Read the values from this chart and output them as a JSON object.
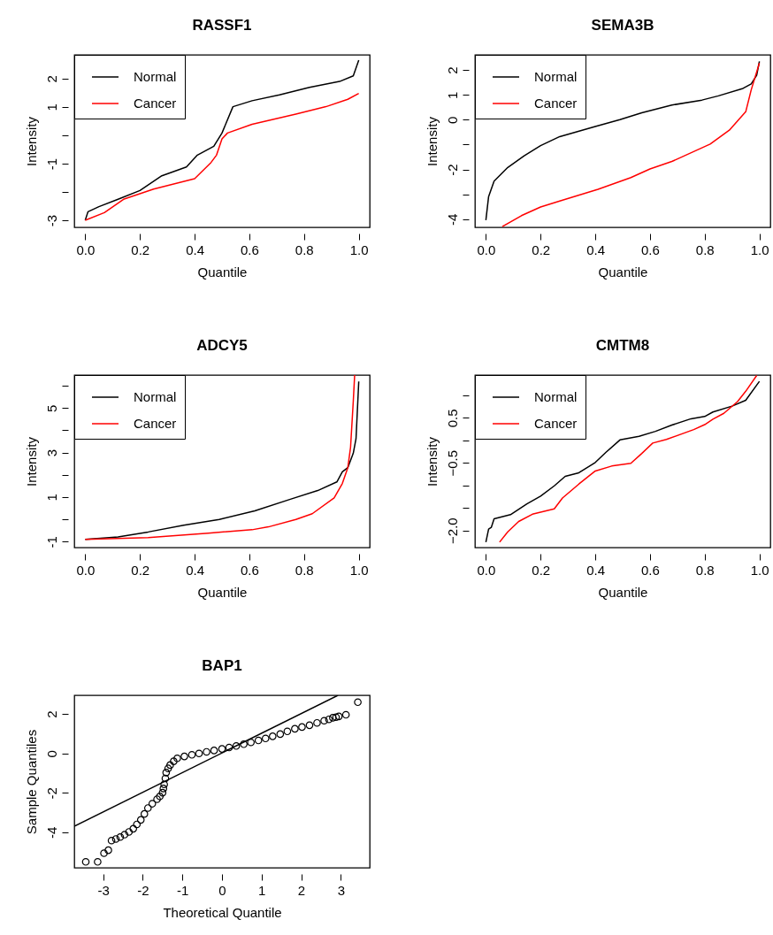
{
  "chart_data": [
    {
      "type": "line",
      "title": "RASSF1",
      "xlabel": "Quantile",
      "ylabel": "Intensity",
      "xlim": [
        -0.04,
        1.04
      ],
      "ylim": [
        -3.25,
        2.84
      ],
      "xticks": [
        {
          "value": 0,
          "label": "0.0"
        },
        {
          "value": 0.2,
          "label": "0.2"
        },
        {
          "value": 0.4,
          "label": "0.4"
        },
        {
          "value": 0.6,
          "label": "0.6"
        },
        {
          "value": 0.8,
          "label": "0.8"
        },
        {
          "value": 1,
          "label": "1.0"
        }
      ],
      "yticks": [
        -3,
        {
          "value": -2,
          "label": null
        },
        -1,
        {
          "value": 0,
          "label": null
        },
        1,
        2
      ],
      "legend": "top left",
      "series": [
        {
          "name": "Normal",
          "color": "#000000",
          "x": [
            0,
            0.01,
            0.05,
            0.12,
            0.2,
            0.28,
            0.37,
            0.41,
            0.47,
            0.5,
            0.54,
            0.61,
            0.71,
            0.82,
            0.93,
            0.98,
            1
          ],
          "values": [
            -3.0,
            -2.7,
            -2.52,
            -2.26,
            -1.95,
            -1.43,
            -1.12,
            -0.7,
            -0.39,
            0.08,
            1.01,
            1.22,
            1.43,
            1.69,
            1.9,
            2.1,
            2.65
          ]
        },
        {
          "name": "Cancer",
          "color": "#ff0000",
          "x": [
            0,
            0.07,
            0.14,
            0.25,
            0.4,
            0.46,
            0.48,
            0.5,
            0.52,
            0.61,
            0.77,
            0.88,
            0.96,
            1
          ],
          "values": [
            -3.0,
            -2.73,
            -2.26,
            -1.9,
            -1.53,
            -0.96,
            -0.7,
            -0.13,
            0.08,
            0.39,
            0.75,
            1.01,
            1.27,
            1.48
          ]
        }
      ]
    },
    {
      "type": "line",
      "title": "SEMA3B",
      "xlabel": "Quantile",
      "ylabel": "Intensity",
      "xlim": [
        -0.04,
        1.04
      ],
      "ylim": [
        -4.33,
        2.61
      ],
      "xticks": [
        {
          "value": 0,
          "label": "0.0"
        },
        {
          "value": 0.2,
          "label": "0.2"
        },
        {
          "value": 0.4,
          "label": "0.4"
        },
        {
          "value": 0.6,
          "label": "0.6"
        },
        {
          "value": 0.8,
          "label": "0.8"
        },
        {
          "value": 1,
          "label": "1.0"
        }
      ],
      "yticks": [
        -4,
        {
          "value": -3,
          "label": null
        },
        -2,
        {
          "value": -1,
          "label": null
        },
        0,
        1,
        2
      ],
      "legend": "top left",
      "series": [
        {
          "name": "Normal",
          "color": "#000000",
          "x": [
            0,
            0.01,
            0.03,
            0.08,
            0.14,
            0.2,
            0.27,
            0.4,
            0.49,
            0.57,
            0.68,
            0.79,
            0.85,
            0.94,
            0.97,
            0.99,
            1
          ],
          "values": [
            -4.04,
            -3.09,
            -2.47,
            -1.92,
            -1.45,
            -1.04,
            -0.68,
            -0.27,
            0,
            0.28,
            0.59,
            0.79,
            0.96,
            1.26,
            1.44,
            1.79,
            2.35
          ]
        },
        {
          "name": "Cancer",
          "color": "#ff0000",
          "x": [
            0.06,
            0.13,
            0.2,
            0.27,
            0.41,
            0.53,
            0.6,
            0.68,
            0.82,
            0.89,
            0.95,
            0.97,
            1
          ],
          "values": [
            -4.3,
            -3.86,
            -3.51,
            -3.27,
            -2.8,
            -2.33,
            -1.98,
            -1.68,
            -0.98,
            -0.42,
            0.32,
            1.2,
            2.28
          ]
        }
      ]
    },
    {
      "type": "line",
      "title": "ADCY5",
      "xlabel": "Quantile",
      "ylabel": "Intensity",
      "xlim": [
        -0.04,
        1.04
      ],
      "ylim": [
        -1.27,
        6.48
      ],
      "xticks": [
        {
          "value": 0,
          "label": "0.0"
        },
        {
          "value": 0.2,
          "label": "0.2"
        },
        {
          "value": 0.4,
          "label": "0.4"
        },
        {
          "value": 0.6,
          "label": "0.6"
        },
        {
          "value": 0.8,
          "label": "0.8"
        },
        {
          "value": 1,
          "label": "1.0"
        }
      ],
      "yticks": [
        -1,
        {
          "value": 0,
          "label": null
        },
        1,
        {
          "value": 2,
          "label": null
        },
        3,
        {
          "value": 4,
          "label": null
        },
        5,
        {
          "value": 6,
          "label": null
        }
      ],
      "legend": "top left",
      "series": [
        {
          "name": "Normal",
          "color": "#000000",
          "x": [
            0,
            0.12,
            0.23,
            0.36,
            0.49,
            0.62,
            0.75,
            0.85,
            0.92,
            0.94,
            0.96,
            0.98,
            0.99,
            1
          ],
          "values": [
            -0.9,
            -0.79,
            -0.57,
            -0.27,
            -0.01,
            0.38,
            0.9,
            1.29,
            1.68,
            2.13,
            2.32,
            2.97,
            3.62,
            6.19
          ]
        },
        {
          "name": "Cancer",
          "color": "#ff0000",
          "x": [
            0,
            0.23,
            0.45,
            0.61,
            0.67,
            0.77,
            0.83,
            0.91,
            0.94,
            0.96,
            0.97,
            0.98,
            0.985
          ],
          "values": [
            -0.9,
            -0.82,
            -0.62,
            -0.47,
            -0.34,
            -0.01,
            0.25,
            0.96,
            1.61,
            2.32,
            3.23,
            5.31,
            6.48
          ]
        }
      ]
    },
    {
      "type": "line",
      "title": "CMTM8",
      "xlabel": "Quantile",
      "ylabel": "Intensity",
      "xlim": [
        -0.04,
        1.04
      ],
      "ylim": [
        -2.38,
        1.45
      ],
      "xticks": [
        {
          "value": 0,
          "label": "0.0"
        },
        {
          "value": 0.2,
          "label": "0.2"
        },
        {
          "value": 0.4,
          "label": "0.4"
        },
        {
          "value": 0.6,
          "label": "0.6"
        },
        {
          "value": 0.8,
          "label": "0.8"
        },
        {
          "value": 1,
          "label": "1.0"
        }
      ],
      "yticks": [
        {
          "value": -2,
          "label": "−2.0"
        },
        {
          "value": -1.5,
          "label": null
        },
        {
          "value": -1,
          "label": null
        },
        {
          "value": -0.5,
          "label": "−0.5"
        },
        {
          "value": 0,
          "label": null
        },
        {
          "value": 0.5,
          "label": "0.5"
        },
        {
          "value": 1,
          "label": null
        }
      ],
      "legend": "top left",
      "series": [
        {
          "name": "Normal",
          "color": "#000000",
          "x": [
            0,
            0.01,
            0.02,
            0.03,
            0.09,
            0.15,
            0.2,
            0.25,
            0.29,
            0.34,
            0.4,
            0.44,
            0.49,
            0.56,
            0.62,
            0.68,
            0.75,
            0.8,
            0.83,
            0.9,
            0.95,
            1
          ],
          "values": [
            -2.26,
            -1.97,
            -1.93,
            -1.74,
            -1.65,
            -1.41,
            -1.24,
            -1.01,
            -0.8,
            -0.72,
            -0.49,
            -0.26,
            0.01,
            0.09,
            0.2,
            0.34,
            0.48,
            0.53,
            0.63,
            0.76,
            0.89,
            1.31
          ]
        },
        {
          "name": "Cancer",
          "color": "#ff0000",
          "x": [
            0.05,
            0.08,
            0.12,
            0.17,
            0.25,
            0.28,
            0.34,
            0.4,
            0.46,
            0.53,
            0.57,
            0.61,
            0.66,
            0.76,
            0.8,
            0.83,
            0.87,
            0.92,
            0.95,
            0.99
          ],
          "values": [
            -2.26,
            -2.03,
            -1.8,
            -1.64,
            -1.52,
            -1.28,
            -0.97,
            -0.68,
            -0.57,
            -0.51,
            -0.29,
            -0.06,
            0.02,
            0.24,
            0.35,
            0.47,
            0.6,
            0.86,
            1.09,
            1.44
          ]
        }
      ]
    },
    {
      "type": "scatter",
      "title": "BAP1",
      "xlabel": "Theoretical Quantile",
      "ylabel": "Sample Quantiles",
      "xlim": [
        -3.73,
        3.73
      ],
      "ylim": [
        -5.8,
        2.95
      ],
      "xticks": [
        -3,
        -2,
        -1,
        0,
        1,
        2,
        3
      ],
      "yticks": [
        -4,
        -2,
        0,
        2
      ],
      "series": [
        {
          "color": "#000000",
          "marker": "circle",
          "x": [
            -3.44,
            -3.14,
            -2.98,
            -2.87,
            -2.79,
            -2.68,
            -2.57,
            -2.46,
            -2.35,
            -2.24,
            -2.15,
            -2.05,
            -1.96,
            -1.87,
            -1.76,
            -1.64,
            -1.57,
            -1.5,
            -1.48,
            -1.46,
            -1.43,
            -1.41,
            -1.36,
            -1.31,
            -1.22,
            -1.13,
            -0.95,
            -0.76,
            -0.58,
            -0.39,
            -0.2,
            0,
            0.18,
            0.36,
            0.55,
            0.73,
            0.92,
            1.1,
            1.28,
            1.47,
            1.65,
            1.84,
            2.02,
            2.21,
            2.4,
            2.58,
            2.7,
            2.8,
            2.88,
            2.95,
            3.13,
            3.43
          ],
          "values": [
            -5.5,
            -5.5,
            -5.06,
            -4.91,
            -4.42,
            -4.34,
            -4.24,
            -4.12,
            -3.98,
            -3.82,
            -3.6,
            -3.37,
            -3.07,
            -2.77,
            -2.55,
            -2.32,
            -2.18,
            -1.99,
            -1.78,
            -1.57,
            -1.27,
            -0.97,
            -0.76,
            -0.59,
            -0.4,
            -0.25,
            -0.15,
            -0.07,
            0.0,
            0.08,
            0.15,
            0.23,
            0.3,
            0.38,
            0.47,
            0.56,
            0.66,
            0.76,
            0.87,
            0.98,
            1.12,
            1.25,
            1.34,
            1.43,
            1.55,
            1.66,
            1.73,
            1.81,
            1.84,
            1.88,
            1.96,
            2.6
          ]
        },
        {
          "type": "line",
          "color": "#000000",
          "x": [
            -3.73,
            2.93
          ],
          "values": [
            -3.7,
            2.95
          ]
        }
      ]
    }
  ]
}
